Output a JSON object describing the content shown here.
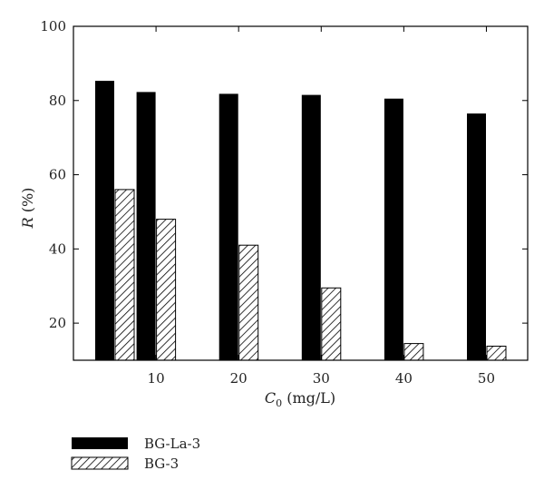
{
  "chart_data": {
    "type": "bar",
    "title": "",
    "xlabel_main": "C",
    "xlabel_sub": "0",
    "xlabel_unit": " (mg/L)",
    "ylabel_main": "R",
    "ylabel_unit": " (%)",
    "ylim": [
      10,
      100
    ],
    "yticks": [
      20,
      40,
      60,
      80,
      100
    ],
    "xlim": [
      0,
      55
    ],
    "xticks": [
      10,
      20,
      30,
      40,
      50
    ],
    "x": [
      5,
      10,
      20,
      30,
      40,
      50
    ],
    "grid": false,
    "legend_position": "bottom-left",
    "series": [
      {
        "name": "BG-La-3",
        "values": [
          85.3,
          82.3,
          81.8,
          81.5,
          80.5,
          76.5
        ],
        "fill": "solid",
        "color": "#000000"
      },
      {
        "name": "BG-3",
        "values": [
          56.0,
          48.0,
          41.0,
          29.5,
          14.5,
          13.8
        ],
        "fill": "hatched",
        "color": "#000000"
      }
    ]
  }
}
